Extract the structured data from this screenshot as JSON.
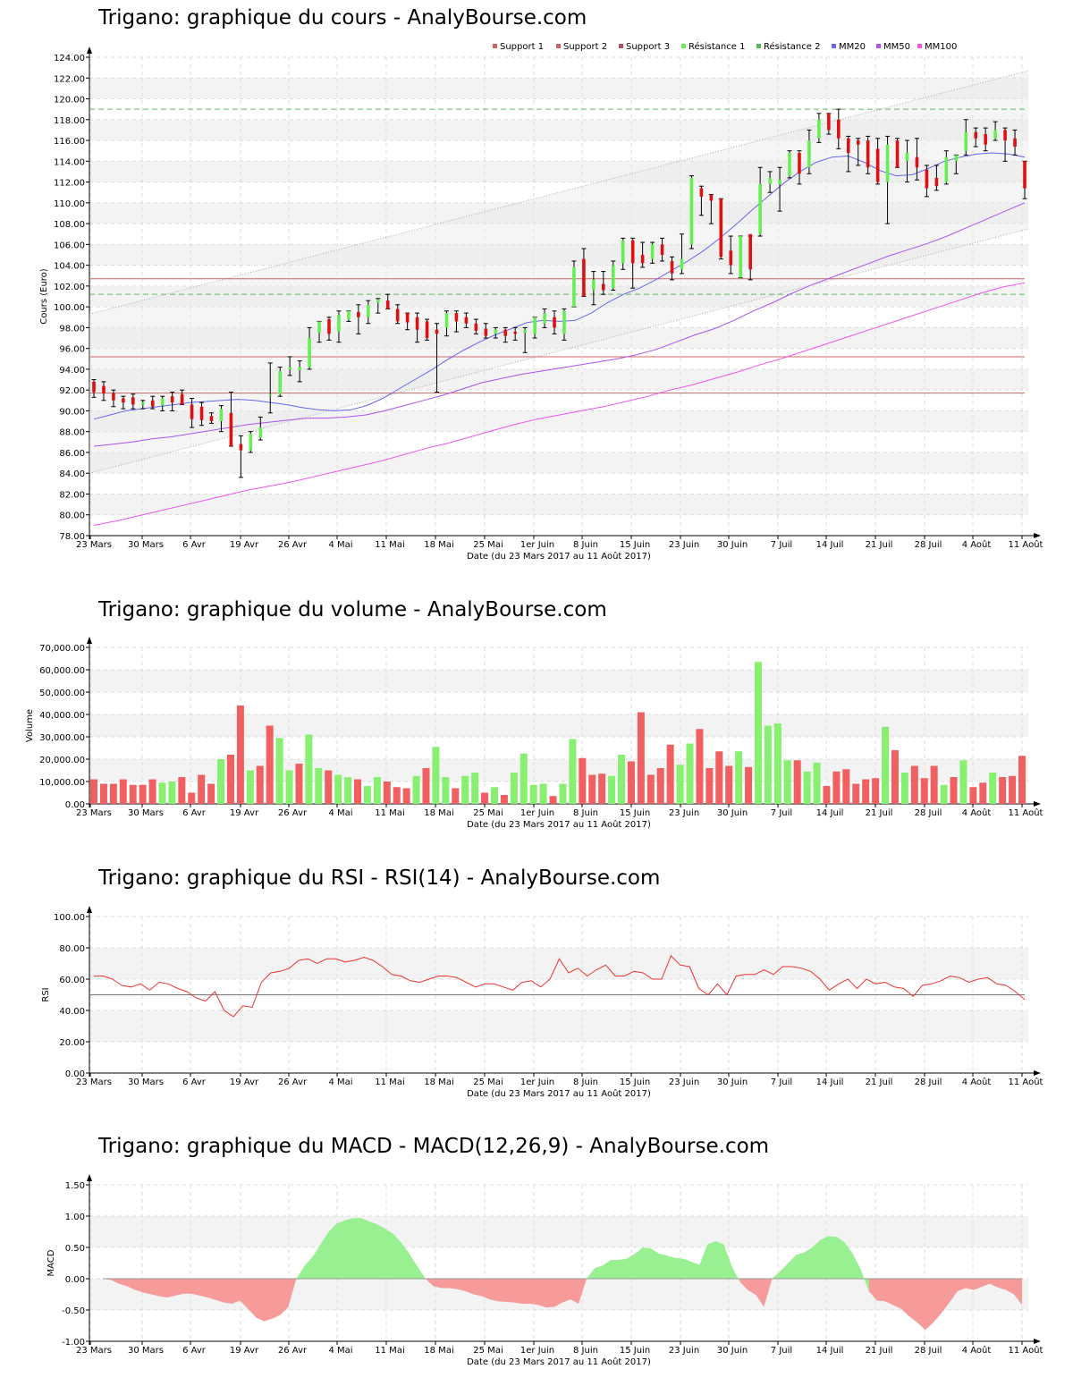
{
  "titles": {
    "price": "Trigano: graphique du cours - AnalyBourse.com",
    "volume": "Trigano: graphique du volume - AnalyBourse.com",
    "rsi": "Trigano: graphique du RSI - RSI(14) - AnalyBourse.com",
    "macd": "Trigano: graphique du MACD - MACD(12,26,9) - AnalyBourse.com"
  },
  "xlabel": "Date (du 23 Mars 2017 au 11 Août 2017)",
  "x_ticks": [
    "23 Mars",
    "30 Mars",
    "6 Avr",
    "19 Avr",
    "26 Avr",
    "4 Mai",
    "11 Mai",
    "18 Mai",
    "25 Mai",
    "1er Juin",
    "8 Juin",
    "15 Juin",
    "23 Juin",
    "30 Juin",
    "7 Juil",
    "14 Juil",
    "21 Juil",
    "28 Juil",
    "4 Août",
    "11 Août"
  ],
  "colors": {
    "up": "#66ee55",
    "down": "#dd1111",
    "vol_up": "#88f070",
    "vol_down": "#f06060",
    "support": "#cc6666",
    "resistance": "#66bb66",
    "mm20": "#6666ee",
    "mm50": "#aa55ee",
    "mm100": "#ee55ee",
    "rsi": "#ee3333",
    "macd_pos": "#99f090",
    "macd_neg": "#f79a9a"
  },
  "chart_data": [
    {
      "type": "candlestick",
      "ylabel": "Cours (Euro)",
      "ylim": [
        78,
        124
      ],
      "y_ticks": [
        "78.00",
        "80.00",
        "82.00",
        "84.00",
        "86.00",
        "88.00",
        "90.00",
        "92.00",
        "94.00",
        "96.00",
        "98.00",
        "100.00",
        "102.00",
        "104.00",
        "106.00",
        "108.00",
        "110.00",
        "112.00",
        "114.00",
        "116.00",
        "118.00",
        "120.00",
        "122.00",
        "124.00"
      ],
      "legend": [
        "Support 1",
        "Support 2",
        "Support 3",
        "Résistance 1",
        "Résistance 2",
        "MM20",
        "MM50",
        "MM100"
      ],
      "legend_placement": "top-right",
      "support": [
        102.7,
        95.2,
        91.7
      ],
      "resistance": [
        119.0,
        101.2
      ],
      "ohlc": [
        [
          92.8,
          93.0,
          91.3,
          91.8
        ],
        [
          92.4,
          92.8,
          91.0,
          91.7
        ],
        [
          91.7,
          92.0,
          90.4,
          91.0
        ],
        [
          91.2,
          91.4,
          90.2,
          90.8
        ],
        [
          91.3,
          91.6,
          90.2,
          90.6
        ],
        [
          90.6,
          91.0,
          90.2,
          90.8
        ],
        [
          91.0,
          91.4,
          90.2,
          90.4
        ],
        [
          90.5,
          91.4,
          90.0,
          91.2
        ],
        [
          91.4,
          91.8,
          90.0,
          90.8
        ],
        [
          91.6,
          92.0,
          90.6,
          90.6
        ],
        [
          90.6,
          91.2,
          88.4,
          89.2
        ],
        [
          90.4,
          90.8,
          88.6,
          89.1
        ],
        [
          89.5,
          89.8,
          88.8,
          89.0
        ],
        [
          89.0,
          90.5,
          88.0,
          90.2
        ],
        [
          89.8,
          91.8,
          86.6,
          86.6
        ],
        [
          86.8,
          87.6,
          83.6,
          86.2
        ],
        [
          86.2,
          88.0,
          86.0,
          87.8
        ],
        [
          87.4,
          89.4,
          87.2,
          88.4
        ],
        [
          91.6,
          94.6,
          89.8,
          91.6
        ],
        [
          91.6,
          94.2,
          91.4,
          93.8
        ],
        [
          94.0,
          95.2,
          93.4,
          94.2
        ],
        [
          93.9,
          94.8,
          92.8,
          94.2
        ],
        [
          94.2,
          98.0,
          94.0,
          97.0
        ],
        [
          97.5,
          98.6,
          96.6,
          98.6
        ],
        [
          98.8,
          99.0,
          96.8,
          97.4
        ],
        [
          97.6,
          99.6,
          96.6,
          99.2
        ],
        [
          98.8,
          99.6,
          98.6,
          99.6
        ],
        [
          99.5,
          100.2,
          97.4,
          99.0
        ],
        [
          99.0,
          100.6,
          98.4,
          100.2
        ],
        [
          100.4,
          100.8,
          99.4,
          100.7
        ],
        [
          100.6,
          101.2,
          99.8,
          99.8
        ],
        [
          99.8,
          100.2,
          98.4,
          98.6
        ],
        [
          99.4,
          99.4,
          97.8,
          98.5
        ],
        [
          99.0,
          99.4,
          96.6,
          97.8
        ],
        [
          98.6,
          98.8,
          96.8,
          97.0
        ],
        [
          97.8,
          98.4,
          91.8,
          97.4
        ],
        [
          98.0,
          99.6,
          97.2,
          99.4
        ],
        [
          99.4,
          99.6,
          97.6,
          98.6
        ],
        [
          99.0,
          99.4,
          98.0,
          98.4
        ],
        [
          98.4,
          98.8,
          97.4,
          97.7
        ],
        [
          97.9,
          98.4,
          97.0,
          97.2
        ],
        [
          97.4,
          98.0,
          97.0,
          97.8
        ],
        [
          97.8,
          98.0,
          96.6,
          97.2
        ],
        [
          97.6,
          98.0,
          96.8,
          97.4
        ],
        [
          97.5,
          98.0,
          95.6,
          97.8
        ],
        [
          97.4,
          99.0,
          97.0,
          99.0
        ],
        [
          98.4,
          99.8,
          98.0,
          99.4
        ],
        [
          99.0,
          99.6,
          97.4,
          98.0
        ],
        [
          97.4,
          99.8,
          96.8,
          99.6
        ],
        [
          100.0,
          104.4,
          100.0,
          103.8
        ],
        [
          104.6,
          105.6,
          101.0,
          101.0
        ],
        [
          101.6,
          103.4,
          100.2,
          102.6
        ],
        [
          102.2,
          103.4,
          101.2,
          101.6
        ],
        [
          101.8,
          104.4,
          101.6,
          104.0
        ],
        [
          104.2,
          106.6,
          103.6,
          106.4
        ],
        [
          106.4,
          106.6,
          101.8,
          104.2
        ],
        [
          105.0,
          106.2,
          103.8,
          104.2
        ],
        [
          104.6,
          106.2,
          104.2,
          106.0
        ],
        [
          106.0,
          106.6,
          104.4,
          105.0
        ],
        [
          104.4,
          104.8,
          102.6,
          103.2
        ],
        [
          103.6,
          107.0,
          103.2,
          104.6
        ],
        [
          106.0,
          112.6,
          105.6,
          112.4
        ],
        [
          111.4,
          111.6,
          108.8,
          110.6
        ],
        [
          110.8,
          110.8,
          108.0,
          110.2
        ],
        [
          110.4,
          110.4,
          104.6,
          104.8
        ],
        [
          105.4,
          106.8,
          103.2,
          104.0
        ],
        [
          102.8,
          106.8,
          102.8,
          106.8
        ],
        [
          107.0,
          106.8,
          102.6,
          103.6
        ],
        [
          107.0,
          113.4,
          106.8,
          111.8
        ],
        [
          111.8,
          113.0,
          111.0,
          112.4
        ],
        [
          111.8,
          113.4,
          109.2,
          112.2
        ],
        [
          112.6,
          115.0,
          112.4,
          114.8
        ],
        [
          114.8,
          115.0,
          111.8,
          112.8
        ],
        [
          113.4,
          117.0,
          112.8,
          116.0
        ],
        [
          116.2,
          118.6,
          115.8,
          118.0
        ],
        [
          118.6,
          118.6,
          116.6,
          117.0
        ],
        [
          118.0,
          119.0,
          115.2,
          116.2
        ],
        [
          116.2,
          116.4,
          113.0,
          114.8
        ],
        [
          116.0,
          116.2,
          113.6,
          115.6
        ],
        [
          116.0,
          116.4,
          112.8,
          113.4
        ],
        [
          115.2,
          116.2,
          111.8,
          112.0
        ],
        [
          112.0,
          116.4,
          108.0,
          115.6
        ],
        [
          116.0,
          116.2,
          113.4,
          113.4
        ],
        [
          114.0,
          116.0,
          112.0,
          114.8
        ],
        [
          114.4,
          116.2,
          112.2,
          113.4
        ],
        [
          113.2,
          113.6,
          110.6,
          111.4
        ],
        [
          112.4,
          113.6,
          111.2,
          111.6
        ],
        [
          112.0,
          115.0,
          111.8,
          114.4
        ],
        [
          114.0,
          114.6,
          112.8,
          114.6
        ],
        [
          115.0,
          118.0,
          114.6,
          116.8
        ],
        [
          116.8,
          117.2,
          115.4,
          116.2
        ],
        [
          116.6,
          117.2,
          115.0,
          115.6
        ],
        [
          116.2,
          117.8,
          116.0,
          117.0
        ],
        [
          117.0,
          117.2,
          114.0,
          116.0
        ],
        [
          116.2,
          117.0,
          114.6,
          115.4
        ],
        [
          114.0,
          114.0,
          110.4,
          111.4
        ]
      ],
      "mm20": [
        89.2,
        89.6,
        90.0,
        90.2,
        90.4,
        90.6,
        90.8,
        90.9,
        91.0,
        91.1,
        91.0,
        90.8,
        90.6,
        90.3,
        90.1,
        90.0,
        90.1,
        90.5,
        91.2,
        92.1,
        93.0,
        93.9,
        94.9,
        95.8,
        96.6,
        97.3,
        97.9,
        98.5,
        98.7,
        98.6,
        98.7,
        99.4,
        100.4,
        101.2,
        101.8,
        102.6,
        103.5,
        104.4,
        105.4,
        106.6,
        107.9,
        109.3,
        110.6,
        111.9,
        113.0,
        113.9,
        114.4,
        114.5,
        113.9,
        113.1,
        112.6,
        112.7,
        113.3,
        114.0,
        114.4,
        114.7,
        114.8,
        114.7,
        114.4
      ],
      "mm50": [
        86.6,
        86.8,
        87.0,
        87.3,
        87.5,
        87.8,
        88.1,
        88.4,
        88.7,
        88.9,
        89.1,
        89.3,
        89.3,
        89.4,
        89.6,
        90.0,
        90.5,
        91.0,
        91.5,
        92.1,
        92.7,
        93.1,
        93.5,
        93.8,
        94.1,
        94.4,
        94.7,
        95.0,
        95.4,
        95.9,
        96.6,
        97.3,
        97.9,
        98.7,
        99.6,
        100.4,
        101.3,
        102.1,
        102.8,
        103.5,
        104.2,
        104.9,
        105.5,
        106.1,
        106.8,
        107.6,
        108.4,
        109.2,
        110.0
      ],
      "mm100": [
        79.0,
        79.4,
        79.9,
        80.4,
        80.9,
        81.4,
        81.9,
        82.4,
        82.8,
        83.2,
        83.7,
        84.2,
        84.7,
        85.2,
        85.8,
        86.4,
        86.9,
        87.5,
        88.1,
        88.7,
        89.2,
        89.6,
        90.0,
        90.4,
        90.9,
        91.4,
        92.0,
        92.5,
        93.1,
        93.7,
        94.4,
        95.0,
        95.7,
        96.4,
        97.1,
        97.8,
        98.5,
        99.2,
        99.9,
        100.6,
        101.3,
        101.9,
        102.3
      ],
      "bollinger": {
        "upper": [
          99.3,
          122.7
        ],
        "lower": [
          84.0,
          107.5
        ]
      }
    },
    {
      "type": "bar",
      "ylabel": "Volume",
      "ylim": [
        0,
        70000
      ],
      "y_ticks": [
        "0.00",
        "10,000.00",
        "20,000.00",
        "30,000.00",
        "40,000.00",
        "50,000.00",
        "60,000.00",
        "70,000.00"
      ],
      "values": [
        11000,
        9000,
        9000,
        11000,
        8500,
        8500,
        11000,
        9500,
        10000,
        12000,
        5000,
        13000,
        9000,
        20000,
        22000,
        44000,
        15000,
        17000,
        35000,
        29500,
        15000,
        18000,
        31000,
        16000,
        15000,
        13000,
        12000,
        11000,
        8000,
        12000,
        10000,
        7500,
        7000,
        12500,
        16000,
        25500,
        12000,
        7000,
        12500,
        14000,
        5000,
        7500,
        4000,
        14000,
        22500,
        8500,
        9000,
        3500,
        9000,
        29000,
        20500,
        13000,
        13500,
        12500,
        22000,
        19000,
        41000,
        13000,
        16000,
        26500,
        17500,
        27000,
        33500,
        16000,
        23500,
        17000,
        23500,
        16500,
        63500,
        35000,
        36000,
        19500,
        19500,
        14500,
        18500,
        8000,
        14500,
        15500,
        9000,
        11000,
        11500,
        34500,
        24000,
        14000,
        17000,
        11500,
        17000,
        8500,
        12000,
        19500,
        7500,
        9500,
        14000,
        12000,
        12500,
        21500
      ],
      "up": [
        0,
        0,
        0,
        0,
        0,
        0,
        0,
        1,
        1,
        0,
        0,
        0,
        0,
        1,
        0,
        0,
        1,
        0,
        0,
        1,
        1,
        0,
        1,
        1,
        0,
        1,
        1,
        0,
        1,
        1,
        0,
        0,
        0,
        1,
        0,
        1,
        1,
        0,
        1,
        1,
        0,
        1,
        0,
        1,
        1,
        1,
        1,
        0,
        1,
        1,
        0,
        0,
        0,
        1,
        1,
        0,
        0,
        0,
        0,
        0,
        1,
        1,
        0,
        0,
        0,
        0,
        1,
        0,
        1,
        1,
        1,
        1,
        0,
        1,
        1,
        0,
        0,
        0,
        0,
        0,
        0,
        1,
        0,
        1,
        0,
        0,
        0,
        1,
        0,
        1,
        0,
        0,
        1,
        0,
        0,
        0
      ]
    },
    {
      "type": "line",
      "ylabel": "RSI",
      "ylim": [
        0,
        100
      ],
      "y_ticks": [
        "0.00",
        "20.00",
        "40.00",
        "60.00",
        "80.00",
        "100.00"
      ],
      "reference": 50,
      "values": [
        62,
        62,
        60,
        56,
        55,
        57,
        53,
        58,
        57,
        54,
        52,
        48,
        46,
        52,
        40,
        36,
        43,
        42,
        58,
        64,
        65,
        67,
        72,
        73,
        70,
        73,
        73,
        71,
        72,
        74,
        72,
        68,
        63,
        62,
        59,
        58,
        60,
        62,
        62,
        61,
        58,
        55,
        57,
        57,
        55,
        53,
        58,
        59,
        55,
        60,
        73,
        64,
        67,
        62,
        66,
        69,
        62,
        62,
        65,
        64,
        60,
        60,
        75,
        69,
        68,
        54,
        50,
        57,
        50,
        62,
        63,
        63,
        66,
        63,
        68,
        68,
        67,
        65,
        60,
        53,
        57,
        60,
        54,
        60,
        57,
        58,
        55,
        54,
        49,
        56,
        57,
        59,
        62,
        61,
        58,
        60,
        61,
        57,
        56,
        52,
        47
      ]
    },
    {
      "type": "area",
      "ylabel": "MACD",
      "ylim": [
        -1.0,
        1.5
      ],
      "y_ticks": [
        "-1.00",
        "-0.50",
        "0.00",
        "0.50",
        "1.00",
        "1.50"
      ],
      "values": [
        0.0,
        -0.02,
        -0.08,
        -0.12,
        -0.18,
        -0.22,
        -0.25,
        -0.28,
        -0.3,
        -0.27,
        -0.24,
        -0.24,
        -0.27,
        -0.3,
        -0.34,
        -0.38,
        -0.4,
        -0.35,
        -0.48,
        -0.62,
        -0.68,
        -0.64,
        -0.58,
        -0.45,
        0.0,
        0.2,
        0.35,
        0.55,
        0.75,
        0.88,
        0.93,
        0.97,
        0.97,
        0.92,
        0.87,
        0.8,
        0.72,
        0.58,
        0.4,
        0.2,
        0.0,
        -0.12,
        -0.15,
        -0.15,
        -0.17,
        -0.2,
        -0.25,
        -0.28,
        -0.33,
        -0.36,
        -0.37,
        -0.38,
        -0.4,
        -0.4,
        -0.42,
        -0.46,
        -0.45,
        -0.38,
        -0.33,
        -0.4,
        0.0,
        0.17,
        0.21,
        0.3,
        0.3,
        0.32,
        0.4,
        0.5,
        0.48,
        0.4,
        0.37,
        0.33,
        0.32,
        0.27,
        0.22,
        0.55,
        0.6,
        0.55,
        0.2,
        -0.05,
        -0.18,
        -0.26,
        -0.45,
        0.0,
        0.12,
        0.25,
        0.38,
        0.42,
        0.5,
        0.62,
        0.68,
        0.67,
        0.58,
        0.4,
        0.15,
        -0.2,
        -0.35,
        -0.36,
        -0.42,
        -0.48,
        -0.6,
        -0.7,
        -0.82,
        -0.7,
        -0.55,
        -0.38,
        -0.2,
        -0.15,
        -0.18,
        -0.13,
        -0.08,
        -0.14,
        -0.18,
        -0.25,
        -0.42
      ]
    }
  ]
}
